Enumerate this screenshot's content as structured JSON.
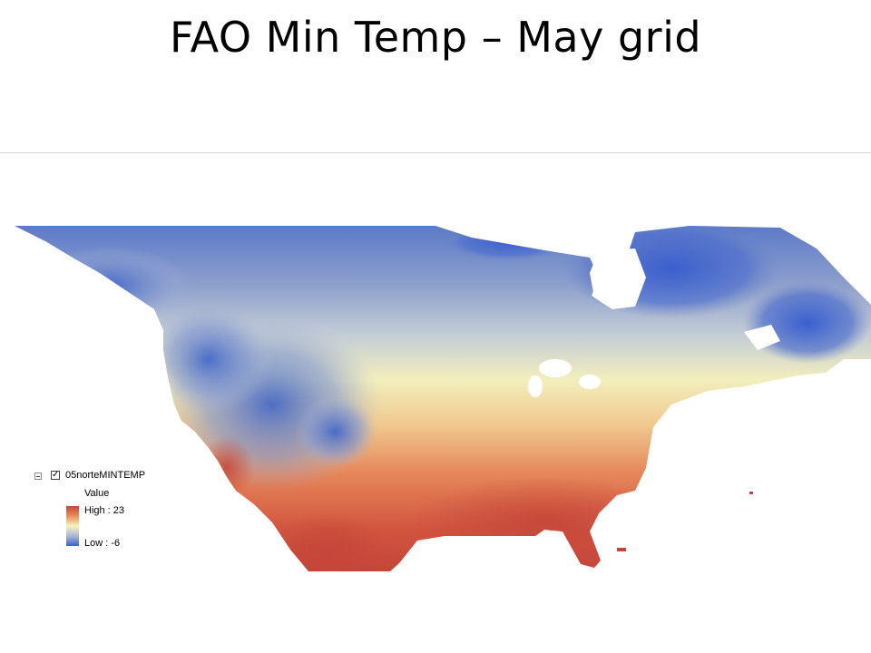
{
  "slide": {
    "title": "FAO Min Temp – May grid"
  },
  "map": {
    "region": "North America",
    "color_ramp": [
      "#c4453a",
      "#e98f55",
      "#f8f3c0",
      "#a9b7d6",
      "#3a62c9"
    ],
    "water_color": "#ffffff"
  },
  "legend": {
    "layer_name": "05norteMINTEMP",
    "checked": true,
    "value_header": "Value",
    "high_label": "High : 23",
    "low_label": "Low : -6"
  }
}
